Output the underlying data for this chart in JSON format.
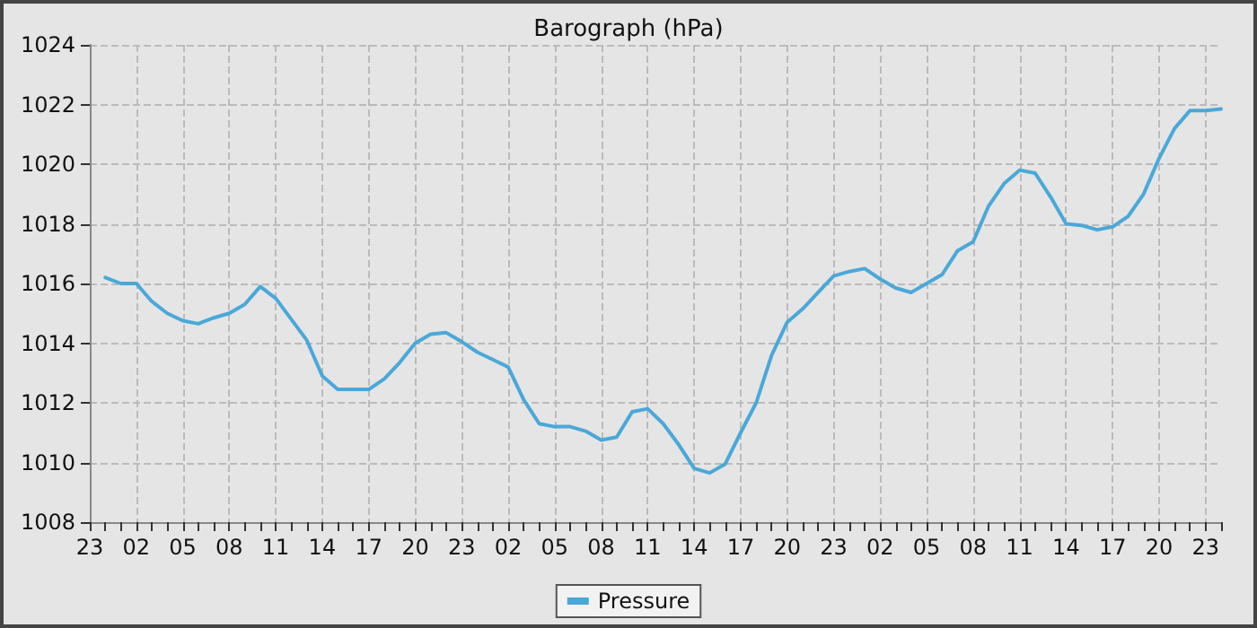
{
  "chart_data": {
    "type": "line",
    "title": "Barograph (hPa)",
    "categories": [
      "23",
      null,
      null,
      "02",
      null,
      null,
      "05",
      null,
      null,
      "08",
      null,
      null,
      "11",
      null,
      null,
      "14",
      null,
      null,
      "17",
      null,
      null,
      "20",
      null,
      null,
      "23",
      null,
      null,
      "02",
      null,
      null,
      "05",
      null,
      null,
      "08",
      null,
      null,
      "11",
      null,
      null,
      "14",
      null,
      null,
      "17",
      null,
      null,
      "20",
      null,
      null,
      "23",
      null,
      null,
      "02",
      null,
      null,
      "05",
      null,
      null,
      "08",
      null,
      null,
      "11",
      null,
      null,
      "14",
      null,
      null,
      "17",
      null,
      null,
      "20",
      null,
      null,
      "23",
      null
    ],
    "series": [
      {
        "name": "Pressure",
        "color": "#4aa8d8",
        "values": [
          null,
          1016.2,
          1016.0,
          1016.0,
          1015.4,
          1015.0,
          1014.75,
          1014.65,
          1014.85,
          1015.0,
          1015.3,
          1015.9,
          1015.5,
          1014.8,
          1014.1,
          1012.9,
          1012.45,
          1012.45,
          1012.45,
          1012.8,
          1013.35,
          1014.0,
          1014.3,
          1014.35,
          1014.05,
          1013.7,
          1013.45,
          1013.2,
          1012.1,
          1011.3,
          1011.2,
          1011.2,
          1011.05,
          1010.75,
          1010.85,
          1011.7,
          1011.8,
          1011.3,
          1010.6,
          1009.8,
          1009.65,
          1009.95,
          1011.0,
          1012.0,
          1013.6,
          1014.7,
          1015.15,
          1015.7,
          1016.25,
          1016.4,
          1016.5,
          1016.15,
          1015.85,
          1015.7,
          1016.0,
          1016.3,
          1017.1,
          1017.4,
          1018.6,
          1019.35,
          1019.8,
          1019.7,
          1018.9,
          1018.0,
          1017.95,
          1017.8,
          1017.9,
          1018.25,
          1019.0,
          1020.2,
          1021.2,
          1021.8,
          1021.8,
          1021.85
        ]
      }
    ],
    "ylim": [
      1008,
      1024
    ],
    "yticks": [
      1008,
      1010,
      1012,
      1014,
      1016,
      1018,
      1020,
      1022,
      1024
    ],
    "grid": true,
    "legend": "bottom",
    "marker": "none",
    "line_style": "solid"
  }
}
